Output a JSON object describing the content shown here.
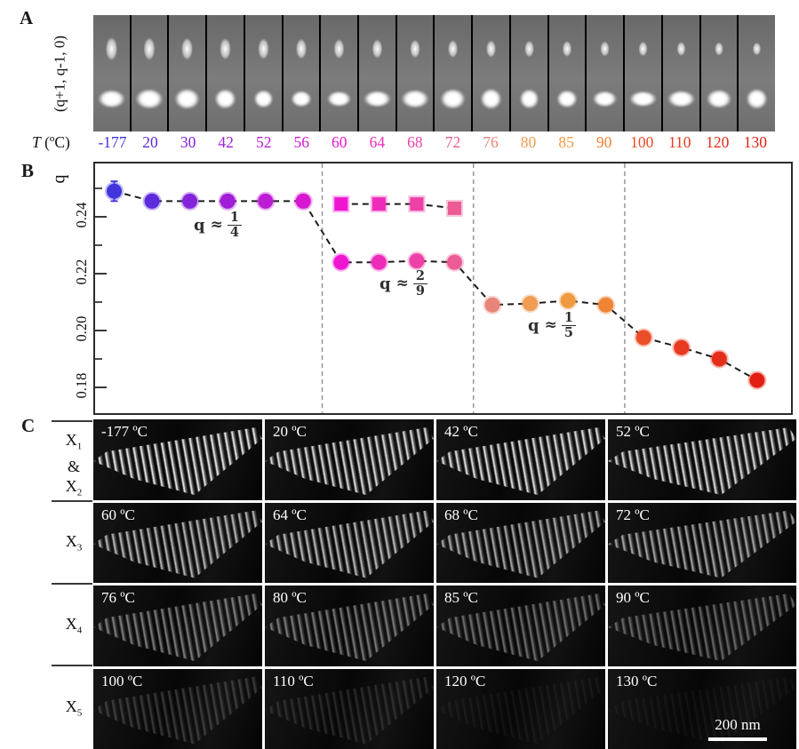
{
  "figure_title": "Temperature-dependent diffraction and dark-field TEM figure",
  "panelA": {
    "label": "A",
    "left_axis_label": "(q+1, q-1, 0)",
    "temp_axis_title_symbol": "T",
    "temp_axis_title_units": "(ºC)"
  },
  "temperatures": [
    {
      "t": "-177",
      "color": "#4134dd",
      "q": 0.249,
      "q_err": 0.0035
    },
    {
      "t": "20",
      "color": "#5c2cdd",
      "q": 0.2455
    },
    {
      "t": "30",
      "color": "#8424da",
      "q": 0.2455
    },
    {
      "t": "42",
      "color": "#a01ed8",
      "q": 0.2455
    },
    {
      "t": "52",
      "color": "#bc1cd4",
      "q": 0.2455
    },
    {
      "t": "56",
      "color": "#d618d2",
      "q": 0.2455
    },
    {
      "t": "60",
      "color": "#ee16d0",
      "q": 0.224,
      "q_square": 0.2445
    },
    {
      "t": "64",
      "color": "#ee2cba",
      "q": 0.224,
      "q_square": 0.2445
    },
    {
      "t": "68",
      "color": "#ee41a7",
      "q": 0.2245,
      "q_square": 0.2445
    },
    {
      "t": "72",
      "color": "#ec5b95",
      "q": 0.224,
      "q_square": 0.243
    },
    {
      "t": "76",
      "color": "#e98478",
      "q": 0.209
    },
    {
      "t": "80",
      "color": "#f09c52",
      "q": 0.2095
    },
    {
      "t": "85",
      "color": "#f09a42",
      "q": 0.2105
    },
    {
      "t": "90",
      "color": "#ef8434",
      "q": 0.209
    },
    {
      "t": "100",
      "color": "#ea4e28",
      "q": 0.1975
    },
    {
      "t": "110",
      "color": "#e73a20",
      "q": 0.194
    },
    {
      "t": "120",
      "color": "#e42e1a",
      "q": 0.19
    },
    {
      "t": "130",
      "color": "#e21f12",
      "q": 0.1825
    }
  ],
  "panelB": {
    "label": "B",
    "ylabel": "q",
    "ytick_labels": [
      "0.24",
      "0.22",
      "0.20",
      "0.18"
    ],
    "annotations": [
      {
        "lead": "q",
        "approx": "≈",
        "numerator": "1",
        "denominator": "4"
      },
      {
        "lead": "q",
        "approx": "≈",
        "numerator": "2",
        "denominator": "9"
      },
      {
        "lead": "q",
        "approx": "≈",
        "numerator": "1",
        "denominator": "5"
      }
    ]
  },
  "chart_data": {
    "type": "scatter",
    "title": "",
    "xlabel": "T (ºC)",
    "ylabel": "q",
    "x_categories": [
      "-177",
      "20",
      "30",
      "42",
      "52",
      "56",
      "60",
      "64",
      "68",
      "72",
      "76",
      "80",
      "85",
      "90",
      "100",
      "110",
      "120",
      "130"
    ],
    "ylim": [
      0.171,
      0.259
    ],
    "yticks": [
      0.18,
      0.2,
      0.22,
      0.24
    ],
    "grid": false,
    "series": [
      {
        "name": "q (circles)",
        "marker": "circle",
        "line": "dashed",
        "values": [
          0.249,
          0.2455,
          0.2455,
          0.2455,
          0.2455,
          0.2455,
          0.224,
          0.224,
          0.2245,
          0.224,
          0.209,
          0.2095,
          0.2105,
          0.209,
          0.1975,
          0.194,
          0.19,
          0.1825
        ]
      },
      {
        "name": "q (squares, coexisting modulation)",
        "marker": "square",
        "line": "dashed",
        "x_categories": [
          "60",
          "64",
          "68",
          "72"
        ],
        "values": [
          0.2445,
          0.2445,
          0.2445,
          0.243
        ]
      }
    ],
    "error_bars": [
      {
        "x": "-177",
        "value": 0.249,
        "plus_minus": 0.0035
      }
    ],
    "annotations": [
      "q ≈ 1/4",
      "q ≈ 2/9",
      "q ≈ 1/5"
    ],
    "phase_boundaries_after_x": [
      "56",
      "72",
      "90"
    ]
  },
  "panelC": {
    "label": "C",
    "rows": [
      {
        "label_lines": [
          "X₁",
          "&",
          "X₂"
        ],
        "tiles": [
          {
            "temp": "-177 ºC",
            "brightness": 1.0
          },
          {
            "temp": "20 ºC",
            "brightness": 0.95
          },
          {
            "temp": "42 ºC",
            "brightness": 0.97
          },
          {
            "temp": "52 ºC",
            "brightness": 0.95
          }
        ]
      },
      {
        "label_lines": [
          "X₃"
        ],
        "tiles": [
          {
            "temp": "60 ºC",
            "brightness": 0.78
          },
          {
            "temp": "64 ºC",
            "brightness": 0.8
          },
          {
            "temp": "68 ºC",
            "brightness": 0.72
          },
          {
            "temp": "72 ºC",
            "brightness": 0.7
          }
        ]
      },
      {
        "label_lines": [
          "X₄"
        ],
        "tiles": [
          {
            "temp": "76 ºC",
            "brightness": 0.52
          },
          {
            "temp": "80 ºC",
            "brightness": 0.5
          },
          {
            "temp": "85 ºC",
            "brightness": 0.45
          },
          {
            "temp": "90 ºC",
            "brightness": 0.42
          }
        ]
      },
      {
        "label_lines": [
          "X₅"
        ],
        "tiles": [
          {
            "temp": "100 ºC",
            "brightness": 0.22
          },
          {
            "temp": "110 ºC",
            "brightness": 0.15
          },
          {
            "temp": "120 ºC",
            "brightness": 0.06
          },
          {
            "temp": "130 ºC",
            "brightness": 0.05
          }
        ]
      }
    ],
    "scale_bar_label": "200 nm"
  }
}
